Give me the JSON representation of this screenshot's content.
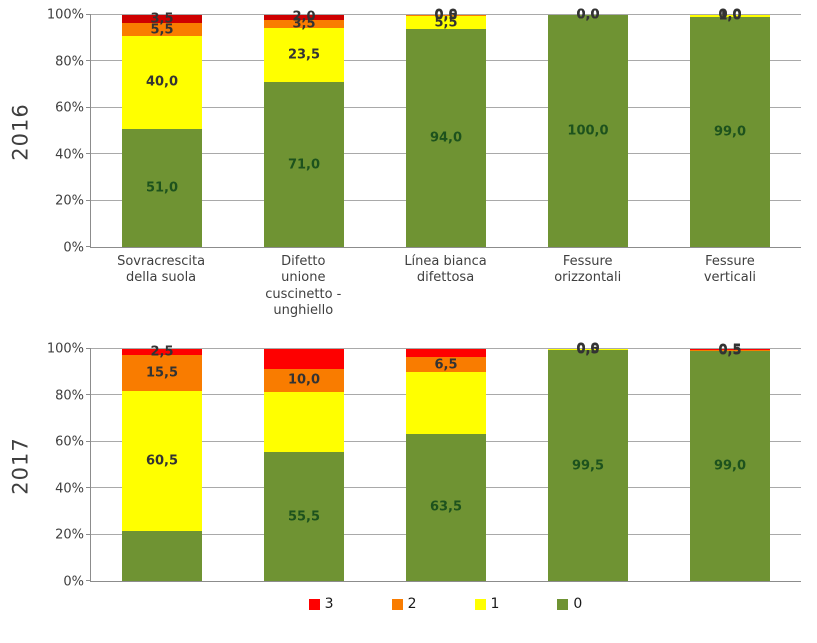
{
  "chart_data": [
    {
      "type": "bar",
      "stacked": true,
      "percent_stacked": true,
      "row_label": "2016",
      "ylim": [
        0,
        100
      ],
      "grid": true,
      "yticks": [
        "100%",
        "80%",
        "60%",
        "40%",
        "20%",
        "0%"
      ],
      "categories": [
        "Sovracrescita della suola",
        "Difetto unione cuscinetto - unghiello",
        "Línea bianca difettosa",
        "Fessure orizzontali",
        "Fessure verticali"
      ],
      "category_lines": [
        [
          "Sovracrescita",
          "della suola"
        ],
        [
          "Difetto",
          "unione",
          "cuscinetto -",
          "unghiello"
        ],
        [
          "Línea bianca",
          "difettosa"
        ],
        [
          "Fessure",
          "orizzontali"
        ],
        [
          "Fessure",
          "verticali"
        ]
      ],
      "series": [
        {
          "name": "0",
          "color": "#6F9333",
          "label_color": "#1D521D",
          "values": [
            51.0,
            71.0,
            94.0,
            100.0,
            99.0
          ],
          "labels": [
            "51,0",
            "71,0",
            "94,0",
            "100,0",
            "99,0"
          ]
        },
        {
          "name": "1",
          "color": "#FFFF00",
          "label_color": "#333333",
          "values": [
            40.0,
            23.5,
            5.5,
            0.0,
            1.0
          ],
          "labels": [
            "40,0",
            "23,5",
            "5,5",
            "0,0",
            "1,0"
          ]
        },
        {
          "name": "2",
          "color": "#F97C00",
          "label_color": "#333333",
          "values": [
            5.5,
            3.5,
            0.5,
            0.0,
            0.0
          ],
          "labels": [
            "5,5",
            "3,5",
            "0,5",
            "0,0",
            "0,0"
          ]
        },
        {
          "name": "3",
          "color": "#CE0000",
          "label_color": "#333333",
          "values": [
            3.5,
            2.0,
            0.0,
            0.0,
            0.0
          ],
          "labels": [
            "3,5",
            "2,0",
            "0,0",
            "0,0",
            "0,0"
          ]
        }
      ]
    },
    {
      "type": "bar",
      "stacked": true,
      "percent_stacked": true,
      "row_label": "2017",
      "ylim": [
        0,
        100
      ],
      "grid": true,
      "yticks": [
        "100%",
        "80%",
        "60%",
        "40%",
        "20%",
        "0%"
      ],
      "categories": [
        "Sovracrescita della suola",
        "Difetto unione cuscinetto - unghiello",
        "Línea bianca difettosa",
        "Fessure orizzontali",
        "Fessure verticali"
      ],
      "category_lines": [],
      "series": [
        {
          "name": "0",
          "color": "#6F9333",
          "label_color": "#1D521D",
          "values": [
            21.5,
            55.5,
            63.5,
            99.5,
            99.0
          ],
          "labels": [
            "",
            "55,5",
            "63,5",
            "99,5",
            "99,0"
          ]
        },
        {
          "name": "1",
          "color": "#FFFF00",
          "label_color": "#333333",
          "values": [
            60.5,
            26.0,
            26.5,
            0.5,
            0.0
          ],
          "labels": [
            "60,5",
            "",
            "",
            "0,5",
            ""
          ]
        },
        {
          "name": "2",
          "color": "#F97C00",
          "label_color": "#333333",
          "values": [
            15.5,
            10.0,
            6.5,
            0.0,
            0.5
          ],
          "labels": [
            "15,5",
            "10,0",
            "6,5",
            "0,0",
            "0,5"
          ]
        },
        {
          "name": "3",
          "color": "#FE0000",
          "label_color": "#333333",
          "values": [
            2.5,
            8.5,
            3.5,
            0.0,
            0.5
          ],
          "labels": [
            "2,5",
            "",
            "",
            "0,0",
            "0,5"
          ]
        }
      ]
    }
  ],
  "legend": {
    "items": [
      {
        "label": "3",
        "color": "#FE0000"
      },
      {
        "label": "2",
        "color": "#F97C00"
      },
      {
        "label": "1",
        "color": "#FFFF00"
      },
      {
        "label": "0",
        "color": "#6F9333"
      }
    ]
  }
}
